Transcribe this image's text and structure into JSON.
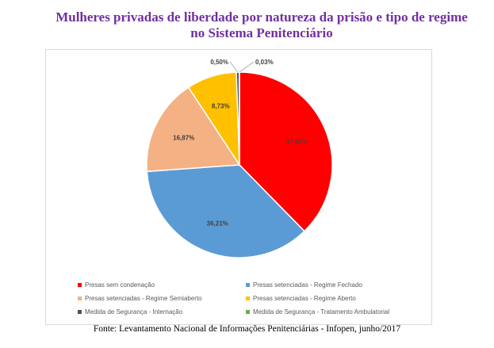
{
  "title_line1": "Mulheres privadas de liberdade por natureza da prisão e tipo de regime",
  "title_line2": "no Sistema Penitenciário",
  "source": "Fonte: Levantamento Nacional de Informações Penitenciárias - Infopen, junho/2017",
  "chart_data": {
    "type": "pie",
    "title": "Mulheres privadas de liberdade por natureza da prisão e tipo de regime no Sistema Penitenciário",
    "legend_position": "bottom",
    "slices": [
      {
        "label": "Presas sem condenação",
        "value": 37.67,
        "value_label": "37,67%",
        "color": "#ff0000"
      },
      {
        "label": "Presas setenciadas - Regime Fechado",
        "value": 36.21,
        "value_label": "36,21%",
        "color": "#5b9bd5"
      },
      {
        "label": "Presas setenciadas - Regime Semiaberto",
        "value": 16.87,
        "value_label": "16,87%",
        "color": "#f4b183"
      },
      {
        "label": "Presas setenciadas - Regime Aberto",
        "value": 8.73,
        "value_label": "8,73%",
        "color": "#ffc000"
      },
      {
        "label": "Medida de Segurança - Internação",
        "value": 0.5,
        "value_label": "0,50%",
        "color": "#44546a"
      },
      {
        "label": "Medida de Segurança  - Tratamento Ambulatorial",
        "value": 0.03,
        "value_label": "0,03%",
        "color": "#70ad47"
      }
    ]
  }
}
